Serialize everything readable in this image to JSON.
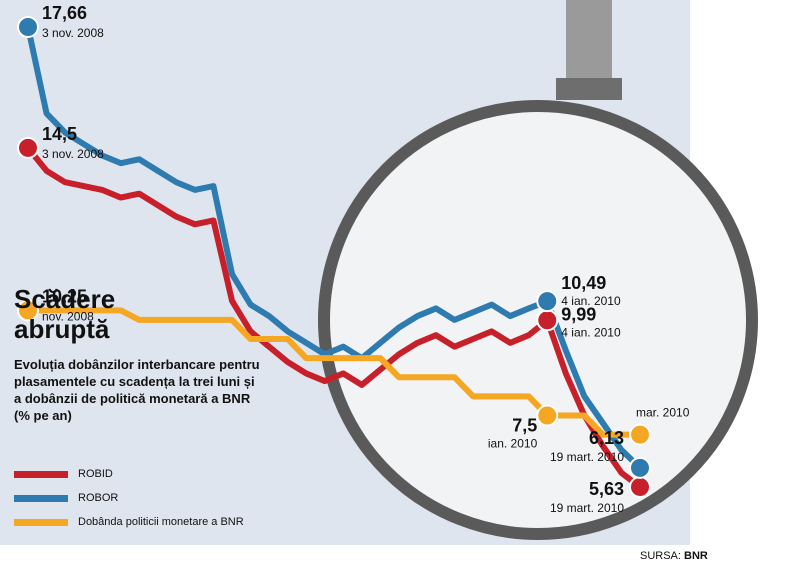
{
  "chart_data": {
    "type": "line",
    "title": "Scădere abruptă",
    "subtitle": "Evoluția dobânzilor interbancare pentru plasamentele cu scadența la trei luni și a dobânzii de politică monetară a BNR (% pe an)",
    "source_label": "SURSA:",
    "source": "BNR",
    "categories": [
      null,
      null,
      null,
      null,
      null,
      null,
      null,
      null,
      null,
      null,
      null,
      null,
      null,
      null,
      null,
      null,
      null,
      null,
      null,
      null,
      null,
      null,
      null,
      null,
      null,
      null,
      null,
      null,
      null,
      null,
      null,
      null,
      null,
      null
    ],
    "series": [
      {
        "name": "ROBID",
        "color": "#c8202a",
        "values": [
          14.5,
          13.9,
          13.6,
          13.5,
          13.4,
          13.2,
          13.3,
          13.0,
          12.7,
          12.5,
          12.6,
          10.5,
          9.7,
          9.3,
          8.9,
          8.6,
          8.4,
          8.6,
          8.3,
          8.7,
          9.1,
          9.4,
          9.6,
          9.3,
          9.5,
          9.7,
          9.4,
          9.6,
          9.99,
          8.6,
          7.5,
          6.7,
          6.0,
          5.63
        ],
        "value_labels": [
          "14,5",
          null,
          null,
          null,
          null,
          null,
          null,
          null,
          null,
          null,
          null,
          null,
          null,
          null,
          null,
          null,
          null,
          null,
          null,
          null,
          null,
          null,
          null,
          null,
          null,
          null,
          null,
          null,
          "9,99",
          null,
          null,
          null,
          null,
          "5,63"
        ],
        "date_labels": [
          "3 nov. 2008",
          null,
          null,
          null,
          null,
          null,
          null,
          null,
          null,
          null,
          null,
          null,
          null,
          null,
          null,
          null,
          null,
          null,
          null,
          null,
          null,
          null,
          null,
          null,
          null,
          null,
          null,
          null,
          "4 ian. 2010",
          null,
          null,
          null,
          null,
          "19 mart. 2010"
        ]
      },
      {
        "name": "ROBOR",
        "color": "#2e7bb0",
        "values": [
          17.66,
          15.4,
          14.9,
          14.6,
          14.3,
          14.1,
          14.2,
          13.9,
          13.6,
          13.4,
          13.5,
          11.2,
          10.4,
          10.1,
          9.7,
          9.4,
          9.1,
          9.3,
          9.0,
          9.4,
          9.8,
          10.1,
          10.3,
          10.0,
          10.2,
          10.4,
          10.1,
          10.3,
          10.49,
          9.2,
          8.0,
          7.3,
          6.6,
          6.13
        ],
        "value_labels": [
          "17,66",
          null,
          null,
          null,
          null,
          null,
          null,
          null,
          null,
          null,
          null,
          null,
          null,
          null,
          null,
          null,
          null,
          null,
          null,
          null,
          null,
          null,
          null,
          null,
          null,
          null,
          null,
          null,
          "10,49",
          null,
          null,
          null,
          null,
          "6,13"
        ],
        "date_labels": [
          "3 nov. 2008",
          null,
          null,
          null,
          null,
          null,
          null,
          null,
          null,
          null,
          null,
          null,
          null,
          null,
          null,
          null,
          null,
          null,
          null,
          null,
          null,
          null,
          null,
          null,
          null,
          null,
          null,
          null,
          "4 ian. 2010",
          null,
          null,
          null,
          null,
          "19 mart. 2010"
        ]
      },
      {
        "name": "Dobânda politicii monetare a BNR",
        "color": "#f5a623",
        "values": [
          10.25,
          10.25,
          10.25,
          10.25,
          10.25,
          10.25,
          10.0,
          10.0,
          10.0,
          10.0,
          10.0,
          10.0,
          9.5,
          9.5,
          9.5,
          9.0,
          9.0,
          9.0,
          9.0,
          9.0,
          8.5,
          8.5,
          8.5,
          8.5,
          8.0,
          8.0,
          8.0,
          8.0,
          7.5,
          7.5,
          7.5,
          7.0,
          7.0,
          7
        ],
        "value_labels": [
          "10,25",
          null,
          null,
          null,
          null,
          null,
          null,
          null,
          null,
          null,
          null,
          null,
          null,
          null,
          null,
          null,
          null,
          null,
          null,
          null,
          null,
          null,
          null,
          null,
          null,
          null,
          null,
          null,
          "7,5",
          null,
          null,
          null,
          null,
          null
        ],
        "date_labels": [
          "nov. 2008",
          null,
          null,
          null,
          null,
          null,
          null,
          null,
          null,
          null,
          null,
          null,
          null,
          null,
          null,
          null,
          null,
          null,
          null,
          null,
          null,
          null,
          null,
          null,
          null,
          null,
          null,
          null,
          "ian. 2010",
          null,
          null,
          null,
          null,
          "mar. 2010"
        ]
      }
    ]
  }
}
